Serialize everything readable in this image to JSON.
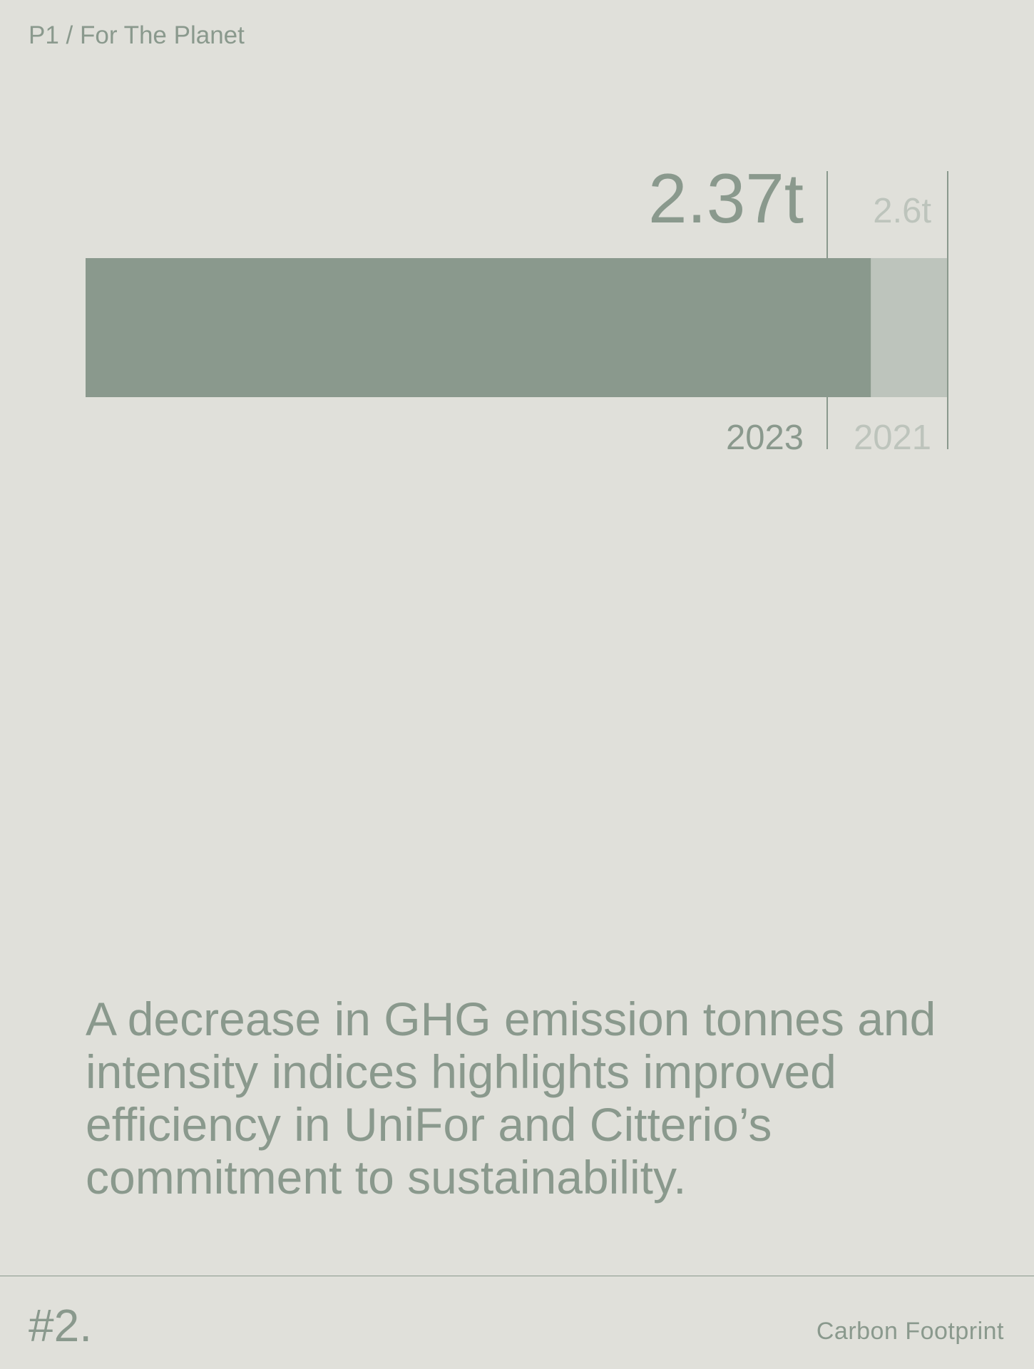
{
  "header": {
    "breadcrumb": "P1 / For The Planet"
  },
  "chart_data": {
    "type": "bar",
    "orientation": "horizontal-overlay",
    "categories": [
      "2023",
      "2021"
    ],
    "values": [
      2.37,
      2.6
    ],
    "value_labels": [
      "2.37t",
      "2.6t"
    ],
    "unit": "t",
    "colors": {
      "2023": "#8a998d",
      "2021": "#bdc4bc"
    }
  },
  "statement": "A decrease in GHG emission tonnes and intensity indices highlights improved efficiency in UniFor and Citterio’s commitment to sustainability.",
  "footer": {
    "number": "#2.",
    "section": "Carbon Footprint"
  },
  "colors": {
    "background": "#e0e0da",
    "primary": "#8a998d",
    "secondary": "#bdc4bc"
  }
}
